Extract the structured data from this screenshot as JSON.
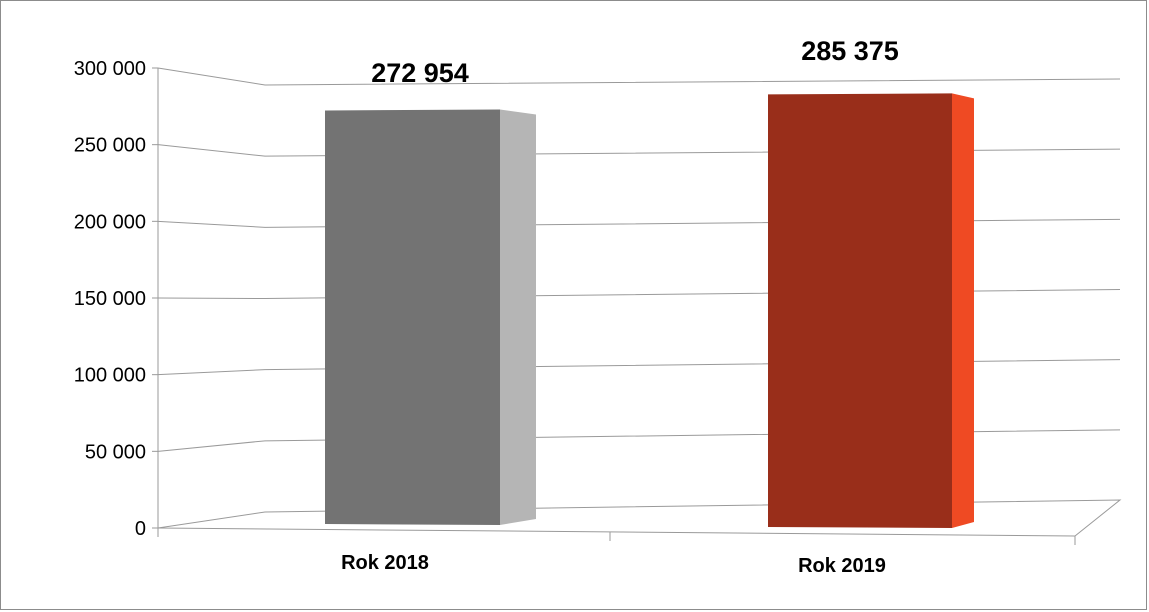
{
  "chart_data": {
    "type": "bar",
    "categories": [
      "Rok 2018",
      "Rok 2019"
    ],
    "values": [
      272954,
      285375
    ],
    "data_labels": [
      "272 954",
      "285 375"
    ],
    "y_ticks": [
      "0",
      "50 000",
      "100 000",
      "150 000",
      "200 000",
      "250 000",
      "300 000"
    ],
    "ylim": [
      0,
      300000
    ],
    "title": "",
    "xlabel": "",
    "ylabel": "",
    "grid": true,
    "style": "3d-column",
    "colors": {
      "bar_front": [
        "#737373",
        "#992e1a"
      ],
      "bar_side": [
        "#b5b5b5",
        "#ef4a23"
      ],
      "gridline": "#9a9a9a"
    }
  }
}
